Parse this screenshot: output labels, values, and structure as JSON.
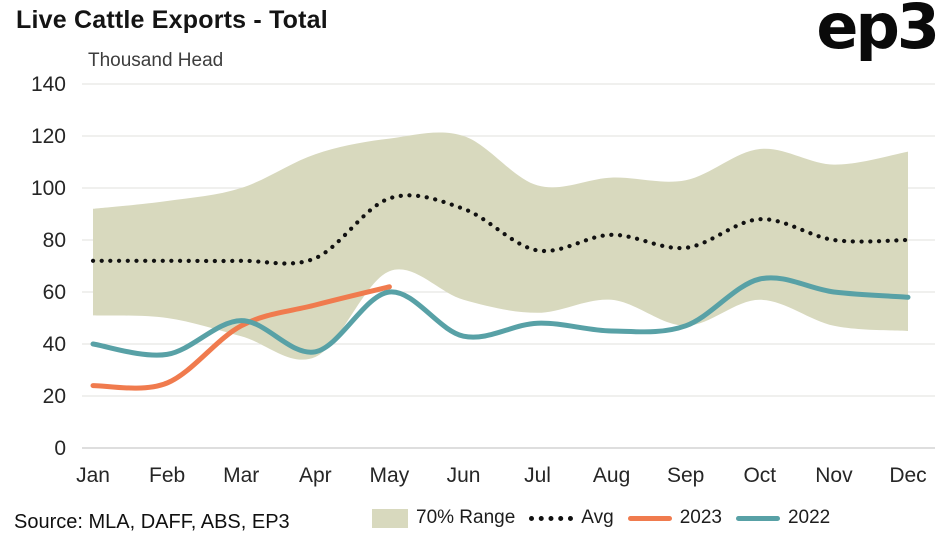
{
  "header": {
    "title": "Live Cattle Exports - Total",
    "subtitle": "Thousand Head",
    "logo": "ep3"
  },
  "footer": {
    "source": "Source: MLA, DAFF, ABS, EP3"
  },
  "chart_data": {
    "type": "line",
    "title": "Live Cattle Exports - Total",
    "ylabel": "Thousand Head",
    "categories": [
      "Jan",
      "Feb",
      "Mar",
      "Apr",
      "May",
      "Jun",
      "Jul",
      "Aug",
      "Sep",
      "Oct",
      "Nov",
      "Dec"
    ],
    "ylim": [
      0,
      140
    ],
    "ytick_step": 20,
    "grid": true,
    "legend_position": "bottom",
    "band": {
      "name": "70% Range",
      "color": "#d8d9be",
      "upper": [
        92,
        95,
        100,
        113,
        119,
        120,
        101,
        104,
        103,
        115,
        109,
        114
      ],
      "lower": [
        51,
        50,
        43,
        35,
        68,
        57,
        52,
        57,
        47,
        57,
        47,
        45
      ]
    },
    "series": [
      {
        "name": "Avg",
        "style": "dotted",
        "color": "#111111",
        "values": [
          72,
          72,
          72,
          73,
          96,
          92,
          76,
          82,
          77,
          88,
          80,
          80
        ]
      },
      {
        "name": "2023",
        "style": "solid",
        "color": "#f07b4e",
        "values": [
          24,
          25,
          47,
          55,
          62
        ]
      },
      {
        "name": "2022",
        "style": "solid",
        "color": "#58a1a6",
        "values": [
          40,
          36,
          49,
          37,
          60,
          43,
          48,
          45,
          47,
          65,
          60,
          58
        ]
      }
    ]
  }
}
